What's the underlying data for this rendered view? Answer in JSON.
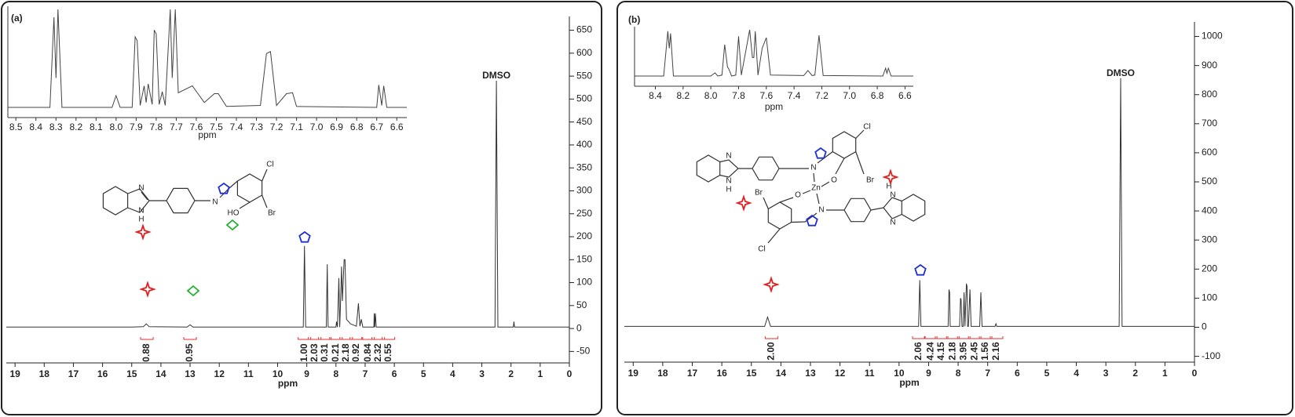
{
  "chart_data": [
    {
      "type": "line",
      "panel_label": "(a)",
      "xlabel": "ppm",
      "color": "#333333",
      "xlim": [
        19.3,
        0
      ],
      "xticks": [
        19,
        18,
        17,
        16,
        15,
        14,
        13,
        12,
        11,
        10,
        9,
        8,
        7,
        6,
        5,
        4,
        3,
        2,
        1,
        0
      ],
      "ylim": [
        -75,
        680
      ],
      "yticks": [
        -50,
        0,
        50,
        100,
        150,
        200,
        250,
        300,
        350,
        400,
        450,
        500,
        550,
        600,
        650
      ],
      "x": [
        19.3,
        15,
        14.6,
        14.5,
        14.4,
        13.1,
        13.0,
        12.9,
        9.12,
        9.08,
        9.04,
        8.33,
        8.3,
        8.27,
        8.0,
        7.98,
        7.95,
        7.9,
        7.87,
        7.84,
        7.81,
        7.78,
        7.72,
        7.69,
        7.64,
        7.5,
        7.3,
        7.23,
        7.18,
        7.13,
        7.08,
        6.7,
        6.69,
        6.67,
        6.65,
        6.62,
        2.55,
        2.5,
        2.45,
        1.92,
        1.9,
        1.88,
        0
      ],
      "values": [
        3,
        3,
        4,
        10,
        4,
        3,
        8,
        3,
        3,
        180,
        3,
        3,
        140,
        3,
        3,
        15,
        3,
        110,
        3,
        60,
        135,
        60,
        150,
        150,
        20,
        10,
        5,
        55,
        5,
        20,
        3,
        3,
        33,
        3,
        33,
        3,
        3,
        540,
        3,
        3,
        15,
        3,
        3
      ],
      "annotations": [
        {
          "text": "DMSO",
          "x": 2.5,
          "y": 540
        }
      ],
      "integrals": {
        "x": [
          14.48,
          13.0,
          9.08,
          8.73,
          8.38,
          8.0,
          7.65,
          7.3,
          6.9,
          6.55,
          6.2
        ],
        "values": [
          0.88,
          0.95,
          1,
          2.03,
          0.31,
          0.21,
          2.18,
          0.92,
          0.84,
          2.32,
          0.55
        ],
        "value_labels": [
          "0.88",
          "0.95",
          "1.00",
          "2.03",
          "0.31",
          "0.21",
          "2.18",
          "0.92",
          "0.84",
          "2.32",
          "0.55"
        ]
      },
      "structure_labels": [
        "N",
        "N",
        "H",
        "N",
        "HO",
        "Cl",
        "Br"
      ],
      "inset": {
        "type": "line",
        "xlabel": "ppm",
        "xlim": [
          8.54,
          6.55
        ],
        "ylim": [
          0,
          100
        ],
        "xticks": [
          8.5,
          8.4,
          8.3,
          8.2,
          8.1,
          {
            "value": 8,
            "label": "8.0"
          },
          7.9,
          7.8,
          7.7,
          7.6,
          7.5,
          7.4,
          7.3,
          7.2,
          7.1,
          {
            "value": 7,
            "label": "7.0"
          },
          6.9,
          6.8,
          6.7,
          6.6
        ],
        "x": [
          8.54,
          8.33,
          8.31,
          8.3,
          8.29,
          8.27,
          8.02,
          8.0,
          7.98,
          7.92,
          7.905,
          7.895,
          7.88,
          7.86,
          7.85,
          7.84,
          7.82,
          7.81,
          7.8,
          7.785,
          7.77,
          7.755,
          7.73,
          7.72,
          7.705,
          7.69,
          7.62,
          7.56,
          7.51,
          7.49,
          7.45,
          7.28,
          7.25,
          7.23,
          7.2,
          7.15,
          7.12,
          7.1,
          6.7,
          6.69,
          6.675,
          6.665,
          6.65,
          6.55
        ],
        "values": [
          0,
          0,
          92,
          30,
          100,
          0,
          0,
          12,
          0,
          0,
          72,
          68,
          2,
          22,
          5,
          24,
          3,
          79,
          75,
          3,
          16,
          2,
          100,
          30,
          100,
          15,
          22,
          5,
          14,
          14,
          1,
          2,
          55,
          57,
          2,
          14,
          15,
          1,
          0,
          23,
          2,
          22,
          0,
          0
        ]
      }
    },
    {
      "type": "line",
      "panel_label": "(b)",
      "xlabel": "ppm",
      "color": "#333333",
      "xlim": [
        19.3,
        0
      ],
      "xticks": [
        19,
        18,
        17,
        16,
        15,
        14,
        13,
        12,
        11,
        10,
        9,
        8,
        7,
        6,
        5,
        4,
        3,
        2,
        1,
        0
      ],
      "ylim": [
        -120,
        1050
      ],
      "yticks": [
        -100,
        0,
        100,
        200,
        300,
        400,
        500,
        600,
        700,
        800,
        900,
        1000
      ],
      "x": [
        19.3,
        14.55,
        14.45,
        14.35,
        9.34,
        9.3,
        9.26,
        8.34,
        8.31,
        8.29,
        8.27,
        7.95,
        7.92,
        7.9,
        7.87,
        7.83,
        7.8,
        7.77,
        7.72,
        7.7,
        7.68,
        7.65,
        7.6,
        7.56,
        7.27,
        7.23,
        7.19,
        6.75,
        6.72,
        6.69,
        2.55,
        2.5,
        2.45,
        0
      ],
      "values": [
        3,
        3,
        35,
        3,
        3,
        162,
        3,
        3,
        130,
        120,
        3,
        3,
        100,
        95,
        3,
        3,
        120,
        3,
        150,
        140,
        3,
        3,
        130,
        3,
        3,
        120,
        3,
        3,
        12,
        3,
        3,
        857,
        3,
        3
      ],
      "annotations": [
        {
          "text": "DMSO",
          "x": 2.5,
          "y": 857
        }
      ],
      "integrals": {
        "x": [
          14.32,
          9.33,
          8.93,
          8.56,
          8.18,
          7.81,
          7.44,
          7.07,
          6.7
        ],
        "values": [
          2,
          2.06,
          4.24,
          4.15,
          2.18,
          3.95,
          2.45,
          1.56,
          2.16
        ],
        "value_labels": [
          "2.00",
          "2.06",
          "4.24",
          "4.15",
          "2.18",
          "3.95",
          "2.45",
          "1.56",
          "2.16"
        ]
      },
      "structure_labels": [
        "N",
        "N",
        "H",
        "N",
        "Cl",
        "Br",
        "O",
        "Zn",
        "O",
        "Br",
        "Cl",
        "N",
        "H",
        "N",
        "N"
      ],
      "inset": {
        "type": "line",
        "xlabel": "ppm",
        "xlim": [
          8.55,
          6.54
        ],
        "ylim": [
          0,
          100
        ],
        "xticks": [
          8.4,
          8.2,
          {
            "value": 8,
            "label": "8.0"
          },
          7.8,
          7.6,
          7.4,
          7.2,
          {
            "value": 7,
            "label": "7.0"
          },
          6.8,
          6.6
        ],
        "x": [
          8.55,
          8.34,
          8.31,
          8.3,
          8.29,
          8.27,
          8.0,
          7.97,
          7.95,
          7.92,
          7.9,
          7.88,
          7.87,
          7.85,
          7.82,
          7.8,
          7.78,
          7.72,
          7.7,
          7.69,
          7.68,
          7.66,
          7.63,
          7.6,
          7.57,
          7.33,
          7.3,
          7.27,
          7.25,
          7.22,
          7.19,
          6.76,
          6.74,
          6.73,
          6.72,
          6.7,
          6.54
        ],
        "values": [
          0,
          0,
          97,
          60,
          92,
          0,
          0,
          7,
          0,
          2,
          68,
          20,
          15,
          0,
          2,
          86,
          2,
          100,
          40,
          40,
          97,
          2,
          60,
          83,
          2,
          1,
          12,
          1,
          2,
          88,
          1,
          0,
          17,
          6,
          17,
          0,
          0
        ]
      }
    }
  ]
}
